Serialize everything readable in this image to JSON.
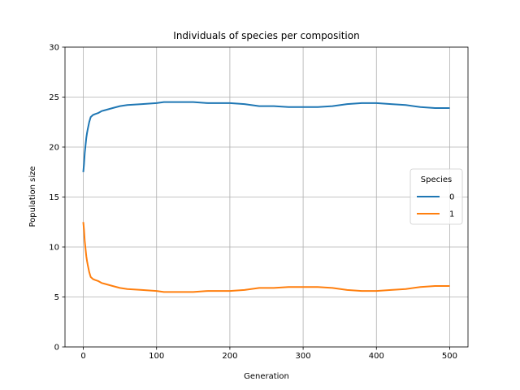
{
  "chart_data": {
    "type": "line",
    "title": "Individuals of species per composition",
    "xlabel": "Generation",
    "ylabel": "Population size",
    "xlim": [
      -25,
      525
    ],
    "ylim": [
      0,
      30
    ],
    "xticks": [
      0,
      100,
      200,
      300,
      400,
      500
    ],
    "yticks": [
      0,
      5,
      10,
      15,
      20,
      25,
      30
    ],
    "grid": true,
    "legend": {
      "title": "Species",
      "placement": "center-right"
    },
    "series": [
      {
        "name": "0",
        "color": "#1f77b4",
        "x": [
          0,
          1,
          2,
          3,
          4,
          5,
          6,
          8,
          10,
          13,
          16,
          20,
          25,
          30,
          40,
          50,
          60,
          80,
          100,
          110,
          120,
          140,
          150,
          170,
          200,
          220,
          240,
          260,
          280,
          300,
          320,
          340,
          360,
          380,
          400,
          420,
          440,
          460,
          480,
          500
        ],
        "values": [
          17.5,
          18.3,
          19.4,
          20.2,
          20.9,
          21.4,
          21.8,
          22.5,
          23.0,
          23.2,
          23.3,
          23.4,
          23.6,
          23.7,
          23.9,
          24.1,
          24.2,
          24.3,
          24.4,
          24.5,
          24.5,
          24.5,
          24.5,
          24.4,
          24.4,
          24.3,
          24.1,
          24.1,
          24.0,
          24.0,
          24.0,
          24.1,
          24.3,
          24.4,
          24.4,
          24.3,
          24.2,
          24.0,
          23.9,
          23.9
        ]
      },
      {
        "name": "1",
        "color": "#ff7f0e",
        "x": [
          0,
          1,
          2,
          3,
          4,
          5,
          6,
          8,
          10,
          13,
          16,
          20,
          25,
          30,
          40,
          50,
          60,
          80,
          100,
          110,
          120,
          140,
          150,
          170,
          200,
          220,
          240,
          260,
          280,
          300,
          320,
          340,
          360,
          380,
          400,
          420,
          440,
          460,
          480,
          500
        ],
        "values": [
          12.5,
          11.7,
          10.6,
          9.8,
          9.1,
          8.6,
          8.2,
          7.5,
          7.0,
          6.8,
          6.7,
          6.6,
          6.4,
          6.3,
          6.1,
          5.9,
          5.8,
          5.7,
          5.6,
          5.5,
          5.5,
          5.5,
          5.5,
          5.6,
          5.6,
          5.7,
          5.9,
          5.9,
          6.0,
          6.0,
          6.0,
          5.9,
          5.7,
          5.6,
          5.6,
          5.7,
          5.8,
          6.0,
          6.1,
          6.1
        ]
      }
    ]
  }
}
